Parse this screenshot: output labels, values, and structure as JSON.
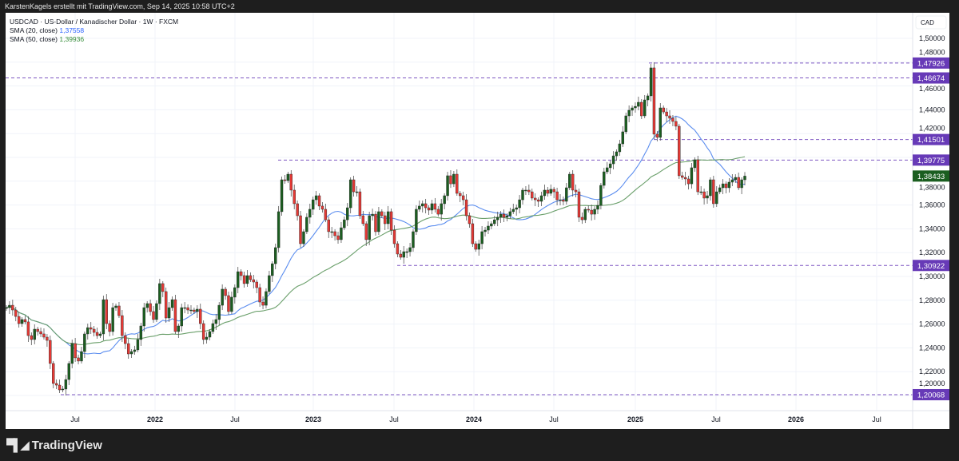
{
  "header": {
    "attribution": "KarstenKagels erstellt mit TradingView.com, Sep 14, 2025 10:58 UTC+2"
  },
  "legend": {
    "symbol": "USDCAD · US-Dollar / Kanadischer Dollar · 1W · FXCM",
    "sma20_label": "SMA (20, close)",
    "sma20_value": "1,37558",
    "sma50_label": "SMA (50, close)",
    "sma50_value": "1,39936"
  },
  "brand": {
    "name": "TradingView"
  },
  "colors": {
    "up": "#1b5e20",
    "down": "#e53935",
    "sma20": "#5b8def",
    "sma50": "#6a9f6a",
    "level": "#673ab7",
    "last": "#1b5e20"
  },
  "chart_data": {
    "type": "candlestick",
    "currency": "CAD",
    "interval": "1W",
    "ylim": [
      1.19,
      1.51
    ],
    "y_ticks": [
      "1,50000",
      "1,48000",
      "1,46000",
      "1,44000",
      "1,42000",
      "1,40000",
      "1,38000",
      "1,36000",
      "1,34000",
      "1,32000",
      "1,30000",
      "1,28000",
      "1,26000",
      "1,24000",
      "1,22000",
      "1,20000"
    ],
    "x_ticks": [
      {
        "label": "Jul",
        "year": false
      },
      {
        "label": "2022",
        "year": true
      },
      {
        "label": "Jul",
        "year": false
      },
      {
        "label": "2023",
        "year": true
      },
      {
        "label": "Jul",
        "year": false
      },
      {
        "label": "2024",
        "year": true
      },
      {
        "label": "Jul",
        "year": false
      },
      {
        "label": "2025",
        "year": true
      },
      {
        "label": "Jul",
        "year": false
      },
      {
        "label": "2026",
        "year": true
      },
      {
        "label": "Jul",
        "year": false
      }
    ],
    "grid": true,
    "closes": [
      1.2738,
      1.2758,
      1.2718,
      1.2664,
      1.2604,
      1.2638,
      1.2618,
      1.2503,
      1.247,
      1.2557,
      1.2537,
      1.2517,
      1.249,
      1.2463,
      1.2269,
      1.2101,
      1.2087,
      1.2047,
      1.2054,
      1.2134,
      1.2269,
      1.2436,
      1.2316,
      1.2289,
      1.2369,
      1.2517,
      1.257,
      1.2557,
      1.253,
      1.2503,
      1.2517,
      1.2805,
      1.2604,
      1.2537,
      1.2738,
      1.2752,
      1.2671,
      1.2503,
      1.2436,
      1.2349,
      1.2369,
      1.2383,
      1.247,
      1.2584,
      1.2738,
      1.2772,
      1.2705,
      1.2638,
      1.2772,
      1.294,
      1.2873,
      1.2651,
      1.2738,
      1.2805,
      1.2537,
      1.2584,
      1.2738,
      1.2738,
      1.2718,
      1.2718,
      1.2705,
      1.2725,
      1.2604,
      1.247,
      1.249,
      1.2537,
      1.2604,
      1.2638,
      1.2758,
      1.2893,
      1.2839,
      1.2705,
      1.2826,
      1.2906,
      1.304,
      1.3007,
      1.294,
      1.3007,
      1.2973,
      1.2953,
      1.2906,
      1.2785,
      1.2758,
      1.2873,
      1.3007,
      1.3107,
      1.3242,
      1.3544,
      1.3812,
      1.3805,
      1.3859,
      1.3725,
      1.3611,
      1.351,
      1.3275,
      1.3376,
      1.3497,
      1.3564,
      1.3644,
      1.3678,
      1.3591,
      1.3564,
      1.3476,
      1.3376,
      1.3376,
      1.3342,
      1.3309,
      1.3409,
      1.3476,
      1.3577,
      1.3812,
      1.3711,
      1.3711,
      1.351,
      1.3443,
      1.3309,
      1.351,
      1.3523,
      1.3376,
      1.3544,
      1.351,
      1.3443,
      1.3544,
      1.3389,
      1.3275,
      1.3188,
      1.3161,
      1.3208,
      1.3208,
      1.3242,
      1.3376,
      1.3564,
      1.3591,
      1.3611,
      1.3577,
      1.3557,
      1.3611,
      1.3564,
      1.3523,
      1.3611,
      1.3678,
      1.3846,
      1.3778,
      1.3859,
      1.3698,
      1.3678,
      1.3644,
      1.351,
      1.3443,
      1.3275,
      1.3228,
      1.3275,
      1.3376,
      1.3389,
      1.3423,
      1.3443,
      1.3476,
      1.3497,
      1.3523,
      1.3497,
      1.351,
      1.3544,
      1.3564,
      1.3577,
      1.3644,
      1.3725,
      1.3725,
      1.3711,
      1.3658,
      1.3644,
      1.3631,
      1.3678,
      1.3725,
      1.3698,
      1.3732,
      1.3711,
      1.3644,
      1.3644,
      1.3631,
      1.3745,
      1.3859,
      1.3725,
      1.3711,
      1.3497,
      1.3476,
      1.3564,
      1.3557,
      1.3523,
      1.3564,
      1.3597,
      1.3765,
      1.3879,
      1.3913,
      1.3946,
      1.4013,
      1.4047,
      1.4114,
      1.4215,
      1.4349,
      1.4396,
      1.4416,
      1.4429,
      1.4463,
      1.4349,
      1.4483,
      1.4517,
      1.4752,
      1.4195,
      1.4168,
      1.4416,
      1.4382,
      1.4349,
      1.4329,
      1.4302,
      1.4262,
      1.3846,
      1.3832,
      1.3819,
      1.3778,
      1.3913,
      1.398,
      1.3711,
      1.3711,
      1.3658,
      1.3678,
      1.3812,
      1.3611,
      1.3711,
      1.3745,
      1.3778,
      1.3745,
      1.3792,
      1.3812,
      1.3832,
      1.3745,
      1.3812,
      1.3843
    ],
    "series": [
      {
        "name": "SMA (20, close)",
        "period": 20,
        "last": 1.37558
      },
      {
        "name": "SMA (50, close)",
        "period": 50,
        "last": 1.39936
      }
    ],
    "levels": [
      {
        "label": "1,47926",
        "value": 1.47926
      },
      {
        "label": "1,46674",
        "value": 1.46674
      },
      {
        "label": "1,41501",
        "value": 1.41501
      },
      {
        "label": "1,39775",
        "value": 1.39775
      },
      {
        "label": "1,30922",
        "value": 1.30922
      },
      {
        "label": "1,20068",
        "value": 1.20068
      }
    ],
    "last_price": {
      "label": "1,38433",
      "value": 1.38433
    }
  }
}
